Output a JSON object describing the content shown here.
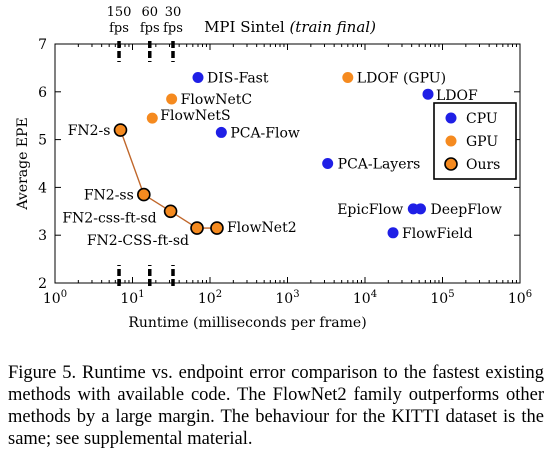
{
  "chart_data": {
    "type": "scatter",
    "title": "MPI Sintel",
    "title_italic": "(train final)",
    "xlabel": "Runtime (milliseconds per frame)",
    "ylabel": "Average EPE",
    "x_scale": "log",
    "xlim": [
      1,
      1000000
    ],
    "ylim": [
      2,
      7
    ],
    "x_ticks": [
      1,
      10,
      100,
      1000,
      10000,
      100000,
      1000000
    ],
    "x_tick_labels": [
      {
        "base": "10",
        "exp": "0"
      },
      {
        "base": "10",
        "exp": "1"
      },
      {
        "base": "10",
        "exp": "2"
      },
      {
        "base": "10",
        "exp": "3"
      },
      {
        "base": "10",
        "exp": "4"
      },
      {
        "base": "10",
        "exp": "5"
      },
      {
        "base": "10",
        "exp": "6"
      }
    ],
    "y_ticks": [
      2,
      3,
      4,
      5,
      6,
      7
    ],
    "fps_markers": [
      {
        "label_top": "150",
        "label_bottom": "fps",
        "x": 6.7
      },
      {
        "label_top": "60",
        "label_bottom": "fps",
        "x": 16.7
      },
      {
        "label_top": "30",
        "label_bottom": "fps",
        "x": 33.3
      }
    ],
    "legend": {
      "position": "right",
      "entries": [
        {
          "name": "CPU",
          "color": "#1f1fe6"
        },
        {
          "name": "GPU",
          "color": "#f58a1f"
        },
        {
          "name": "Ours",
          "color": "#f58a1f",
          "outlined": true
        }
      ]
    },
    "series": [
      {
        "name": "CPU",
        "color": "#1f1fe6",
        "points": [
          {
            "label": "DIS-Fast",
            "x": 70,
            "y": 6.3
          },
          {
            "label": "PCA-Flow",
            "x": 140,
            "y": 5.15
          },
          {
            "label": "PCA-Layers",
            "x": 3300,
            "y": 4.5
          },
          {
            "label": "LDOF",
            "x": 65000,
            "y": 5.95
          },
          {
            "label": "EpicFlow",
            "x": 42000,
            "y": 3.55
          },
          {
            "label": "DeepFlow",
            "x": 52000,
            "y": 3.55
          },
          {
            "label": "FlowField",
            "x": 23000,
            "y": 3.05
          }
        ]
      },
      {
        "name": "GPU",
        "color": "#f58a1f",
        "points": [
          {
            "label": "LDOF (GPU)",
            "x": 6000,
            "y": 6.3
          },
          {
            "label": "FlowNetC",
            "x": 32,
            "y": 5.85
          },
          {
            "label": "FlowNetS",
            "x": 18,
            "y": 5.45
          }
        ]
      },
      {
        "name": "Ours",
        "color": "#f58a1f",
        "connected": true,
        "line_color": "#c0672b",
        "points": [
          {
            "label": "FN2-s",
            "x": 7,
            "y": 5.2
          },
          {
            "label": "FN2-ss",
            "x": 14,
            "y": 3.85
          },
          {
            "label": "FN2-css-ft-sd",
            "x": 31,
            "y": 3.5
          },
          {
            "label": "FN2-CSS-ft-sd",
            "x": 68,
            "y": 3.15
          },
          {
            "label": "FlowNet2",
            "x": 123,
            "y": 3.15
          }
        ]
      }
    ]
  },
  "caption": "Figure 5. Runtime vs.  endpoint error comparison to the fastest existing methods with available code. The FlowNet2 family outperforms other methods by a large margin. The behaviour for the KITTI dataset is the same; see supplemental material."
}
